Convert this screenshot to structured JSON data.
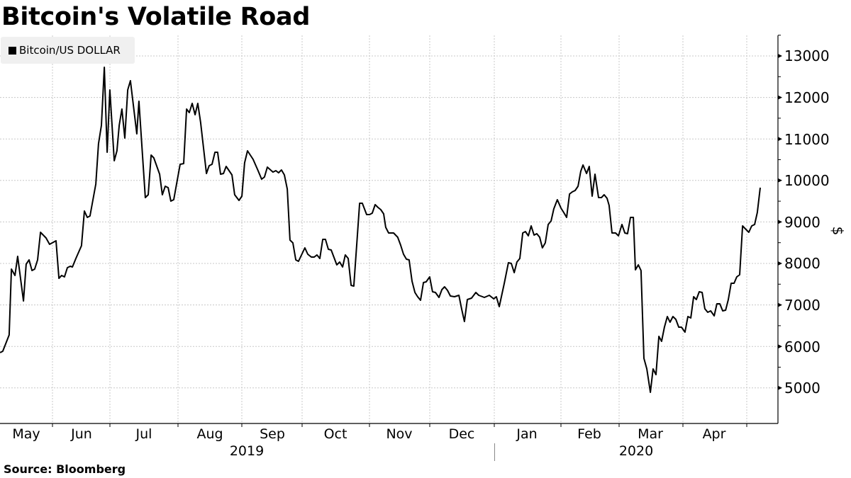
{
  "title": "Bitcoin's Volatile Road",
  "source": "Source: Bloomberg",
  "legend": {
    "label": "Bitcoin/US DOLLAR",
    "color": "#000000"
  },
  "y_axis": {
    "unit_label": "$",
    "ticks": [
      "13000",
      "12000",
      "11000",
      "10000",
      "9000",
      "8000",
      "7000",
      "6000",
      "5000"
    ]
  },
  "x_axis": {
    "months": [
      "May",
      "Jun",
      "Jul",
      "Aug",
      "Sep",
      "Oct",
      "Nov",
      "Dec",
      "Jan",
      "Feb",
      "Mar",
      "Apr"
    ],
    "years": [
      "2019",
      "2020"
    ]
  },
  "chart_data": {
    "type": "line",
    "title": "Bitcoin's Volatile Road",
    "xlabel": "",
    "ylabel": "$",
    "ylim": [
      4200,
      13600
    ],
    "grid": true,
    "legend_position": "top-left",
    "x_unit": "days since 2019-05-01",
    "series": [
      {
        "name": "Bitcoin/US DOLLAR",
        "color": "#000000",
        "x": [
          5.7,
          7.0,
          10.1,
          11.2,
          12.9,
          14.2,
          17.0,
          18.3,
          19.7,
          21.1,
          22.4,
          23.8,
          25.2,
          27.9,
          29.6,
          32.7,
          34.1,
          35.4,
          36.8,
          38.2,
          39.6,
          40.6,
          42.3,
          45.0,
          46.4,
          47.8,
          49.1,
          51.9,
          53.2,
          54.6,
          56.0,
          57.4,
          58.7,
          60.8,
          62.1,
          63.2,
          64.5,
          65.9,
          67.3,
          68.6,
          71.7,
          72.7,
          75.8,
          77.2,
          78.6,
          79.9,
          82.7,
          84.0,
          85.4,
          86.8,
          88.1,
          89.5,
          92.6,
          94.3,
          95.7,
          97.0,
          98.4,
          99.8,
          101.1,
          102.5,
          105.3,
          106.6,
          108.0,
          109.4,
          110.7,
          112.1,
          113.5,
          114.8,
          117.6,
          118.9,
          121.0,
          122.4,
          123.7,
          125.1,
          127.8,
          130.2,
          131.9,
          133.3,
          134.7,
          137.4,
          138.8,
          140.1,
          141.5,
          142.9,
          144.3,
          145.6,
          147.0,
          148.4,
          149.7,
          152.8,
          154.2,
          155.9,
          157.3,
          158.6,
          160.0,
          161.4,
          162.7,
          164.1,
          165.5,
          168.2,
          169.6,
          171.0,
          172.3,
          173.7,
          175.1,
          176.4,
          178.1,
          179.2,
          180.5,
          182.6,
          184.0,
          185.3,
          186.7,
          188.1,
          189.4,
          190.8,
          191.8,
          193.2,
          195.6,
          197.6,
          199.0,
          200.4,
          201.8,
          203.1,
          204.5,
          205.9,
          207.2,
          208.6,
          210.0,
          211.3,
          213.0,
          214.4,
          215.8,
          217.5,
          218.9,
          220.2,
          221.6,
          223.0,
          225.0,
          227.1,
          228.5,
          229.8,
          231.2,
          233.2,
          235.3,
          236.7,
          239.4,
          241.8,
          243.9,
          245.2,
          246.6,
          249.0,
          251.0,
          252.4,
          253.8,
          255.1,
          256.5,
          257.9,
          259.2,
          260.6,
          262.0,
          263.4,
          264.7,
          266.1,
          267.4,
          268.8,
          270.2,
          271.6,
          272.9,
          274.6,
          276.4,
          277.7,
          279.1,
          280.5,
          281.8,
          283.2,
          284.6,
          285.9,
          287.0,
          288.7,
          290.0,
          291.4,
          292.8,
          294.5,
          295.9,
          297.2,
          298.6,
          299.6,
          301.0,
          302.7,
          304.1,
          305.8,
          307.2,
          308.5,
          309.9,
          311.3,
          312.3,
          313.7,
          315.0,
          316.4,
          317.8,
          319.5,
          320.8,
          322.2,
          323.6,
          324.9,
          326.3,
          327.7,
          329.0,
          330.4,
          331.8,
          333.2,
          334.5,
          336.2,
          337.6,
          339.0,
          340.4,
          341.7,
          343.1,
          344.5,
          345.8,
          347.2,
          348.6,
          350.3,
          351.6,
          353.0,
          354.4,
          355.8,
          357.1,
          358.5,
          359.9,
          361.2,
          362.6,
          364.0,
          365.3,
          367.0,
          368.4,
          369.8,
          371.1,
          372.5
        ],
        "values": [
          5850,
          5884,
          6276,
          7863,
          7710,
          8170,
          7096,
          7983,
          8085,
          7829,
          7863,
          8085,
          8751,
          8614,
          8461,
          8546,
          7642,
          7710,
          7676,
          7898,
          7932,
          7915,
          8119,
          8427,
          9263,
          9109,
          9143,
          9911,
          10884,
          11328,
          12727,
          10679,
          12181,
          10474,
          10713,
          11328,
          11720,
          11020,
          12181,
          12403,
          11123,
          11908,
          9587,
          9655,
          10611,
          10543,
          10150,
          9655,
          9860,
          9826,
          9502,
          9536,
          10389,
          10406,
          11720,
          11635,
          11857,
          11584,
          11857,
          11396,
          10167,
          10355,
          10389,
          10679,
          10679,
          10150,
          10167,
          10338,
          10133,
          9655,
          9519,
          9621,
          10423,
          10713,
          10509,
          10235,
          10031,
          10082,
          10321,
          10201,
          10235,
          10184,
          10253,
          10133,
          9792,
          8563,
          8495,
          8085,
          8051,
          8375,
          8222,
          8153,
          8153,
          8205,
          8119,
          8580,
          8580,
          8341,
          8324,
          7966,
          8034,
          7915,
          8205,
          8119,
          7471,
          7454,
          8665,
          9450,
          9450,
          9177,
          9177,
          9211,
          9416,
          9348,
          9297,
          9194,
          8870,
          8734,
          8734,
          8631,
          8444,
          8222,
          8102,
          8085,
          7573,
          7300,
          7198,
          7113,
          7539,
          7556,
          7676,
          7317,
          7300,
          7181,
          7369,
          7437,
          7352,
          7215,
          7198,
          7232,
          6891,
          6601,
          7130,
          7164,
          7300,
          7232,
          7181,
          7232,
          7147,
          7198,
          6959,
          7522,
          8017,
          8000,
          7778,
          8034,
          8119,
          8734,
          8768,
          8665,
          8904,
          8683,
          8717,
          8631,
          8375,
          8495,
          8939,
          9024,
          9314,
          9536,
          9331,
          9229,
          9109,
          9672,
          9724,
          9758,
          9860,
          10218,
          10372,
          10167,
          10338,
          9621,
          10150,
          9587,
          9587,
          9655,
          9570,
          9399,
          8734,
          8734,
          8665,
          8939,
          8734,
          8717,
          9109,
          9109,
          7846,
          7966,
          7829,
          5713,
          5457,
          4894,
          5457,
          5321,
          6242,
          6123,
          6464,
          6720,
          6584,
          6720,
          6652,
          6464,
          6464,
          6345,
          6720,
          6686,
          7198,
          7130,
          7317,
          7300,
          6908,
          6822,
          6857,
          6737,
          7027,
          7027,
          6857,
          6874,
          7130,
          7522,
          7522,
          7676,
          7727,
          8904,
          8836,
          8751,
          8904,
          8939,
          9229,
          9826
        ]
      }
    ],
    "y_ticks": [
      5000,
      6000,
      7000,
      8000,
      9000,
      10000,
      11000,
      12000,
      13000
    ],
    "x_tick_labels": [
      "May",
      "Jun",
      "Jul",
      "Aug",
      "Sep",
      "Oct",
      "Nov",
      "Dec",
      "Jan",
      "Feb",
      "Mar",
      "Apr"
    ],
    "x_group_labels": [
      "2019",
      "2020"
    ]
  }
}
